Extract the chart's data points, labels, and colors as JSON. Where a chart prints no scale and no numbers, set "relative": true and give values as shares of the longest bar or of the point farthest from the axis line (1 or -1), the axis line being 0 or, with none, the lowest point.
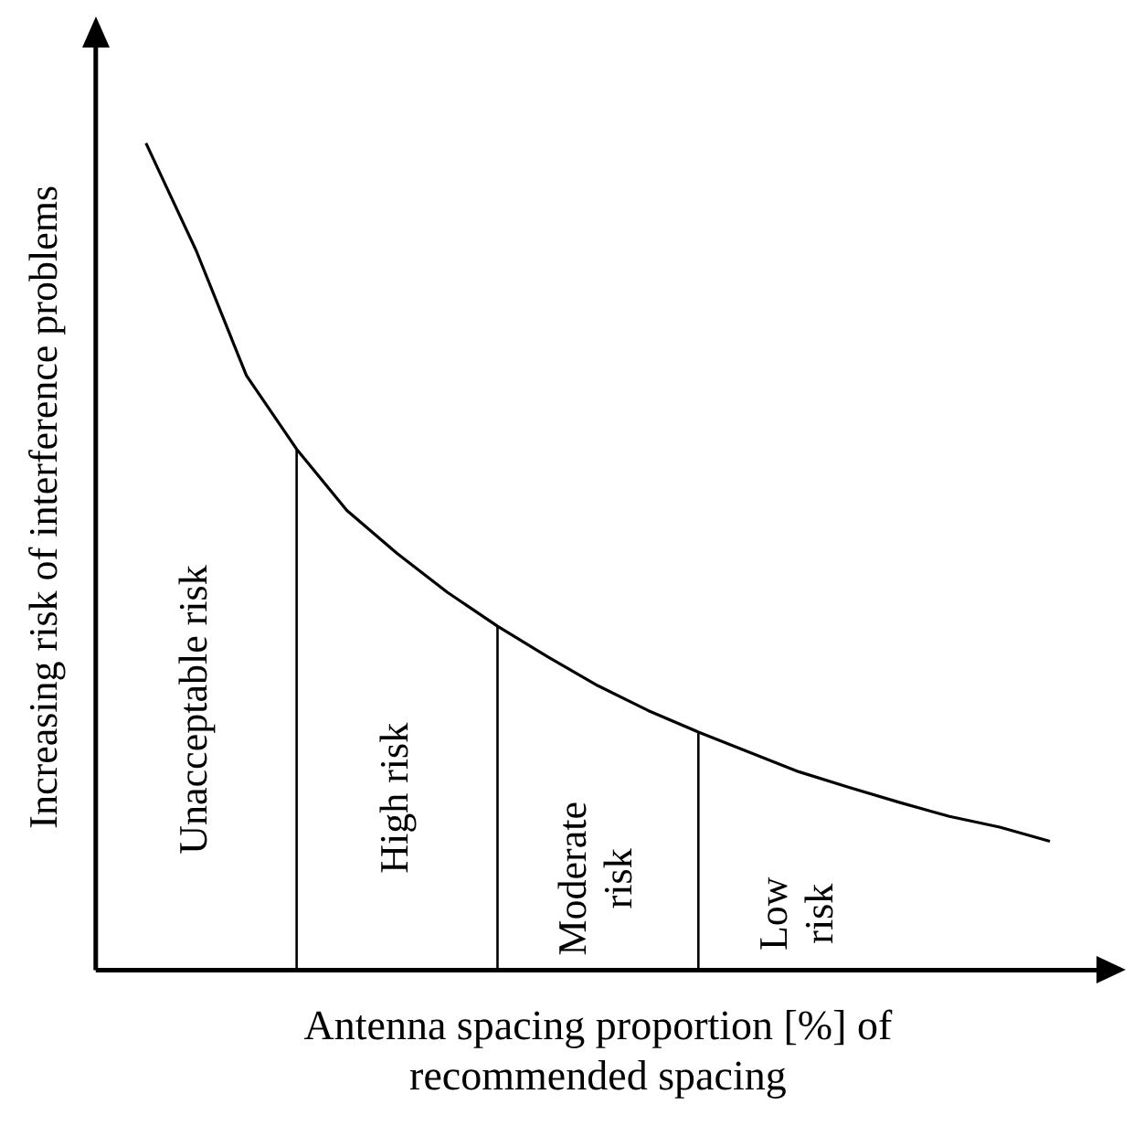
{
  "chart_data": {
    "type": "line",
    "relative": true,
    "xlabel": "Antenna spacing proportion [%] of recommended spacing",
    "ylabel": "Increasing risk of interference problems",
    "legend": false,
    "marker": "none",
    "line_style": "solid",
    "categories": [
      null,
      null,
      null,
      null,
      null,
      null,
      null,
      null,
      null,
      null,
      null,
      null,
      null,
      null,
      null,
      null,
      null,
      null,
      null,
      null,
      null
    ],
    "series": [
      {
        "color": "#000000",
        "values": [
          null,
          1.0,
          0.87,
          0.719,
          0.63,
          0.556,
          0.504,
          0.457,
          0.416,
          0.379,
          0.344,
          0.314,
          0.288,
          0.264,
          0.24,
          0.221,
          0.203,
          0.186,
          0.173,
          0.156,
          null
        ]
      }
    ],
    "annotations": [
      "Unacceptable risk",
      "High risk",
      "Moderate risk",
      "Low risk"
    ]
  }
}
